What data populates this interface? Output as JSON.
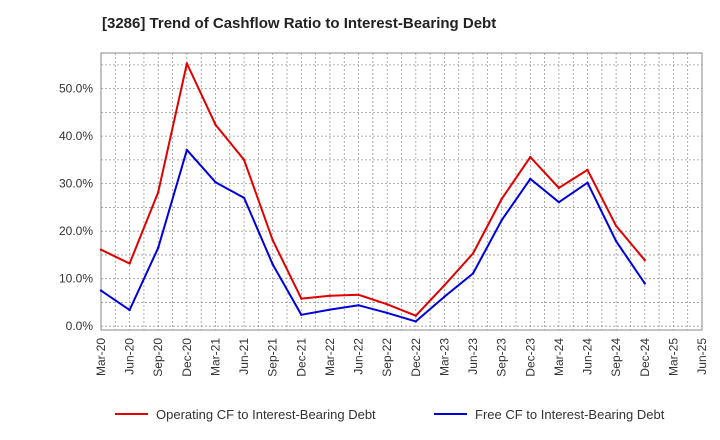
{
  "chart_data": {
    "type": "line",
    "title": "[3286]  Trend of Cashflow Ratio to Interest-Bearing Debt",
    "xlabel": "",
    "ylabel": "",
    "categories": [
      "Mar-20",
      "Jun-20",
      "Sep-20",
      "Dec-20",
      "Mar-21",
      "Jun-21",
      "Sep-21",
      "Dec-21",
      "Mar-22",
      "Jun-22",
      "Sep-22",
      "Dec-22",
      "Mar-23",
      "Jun-23",
      "Sep-23",
      "Dec-23",
      "Mar-24",
      "Jun-24",
      "Sep-24",
      "Dec-24",
      "Mar-25",
      "Jun-25"
    ],
    "yticks": [
      "0.0%",
      "10.0%",
      "20.0%",
      "30.0%",
      "40.0%",
      "50.0%"
    ],
    "ylim": [
      -0.8,
      57.5
    ],
    "grid": true,
    "legend_position": "bottom",
    "series": [
      {
        "name": "Operating CF to Interest-Bearing Debt",
        "color": "#e00000",
        "values": [
          16.1,
          13.2,
          28.2,
          55.3,
          42.4,
          35.0,
          18.1,
          5.8,
          6.4,
          6.6,
          4.6,
          2.2,
          8.6,
          15.3,
          26.8,
          35.6,
          29.1,
          32.9,
          21.1,
          13.9,
          null,
          null
        ]
      },
      {
        "name": "Free CF to Interest-Bearing Debt",
        "color": "#0000dd",
        "values": [
          7.5,
          3.4,
          16.5,
          37.1,
          30.3,
          27.0,
          13.0,
          2.4,
          3.5,
          4.4,
          2.8,
          1.0,
          6.2,
          11.1,
          22.3,
          31.0,
          26.1,
          30.2,
          17.9,
          9.0,
          null,
          null
        ]
      }
    ]
  }
}
